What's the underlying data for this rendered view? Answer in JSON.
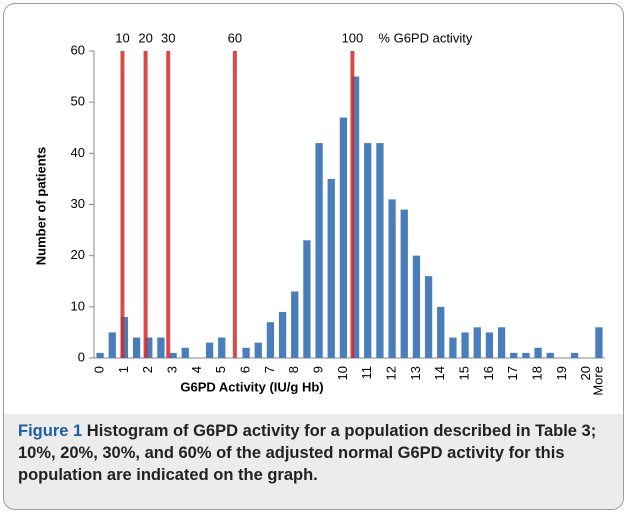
{
  "chart_data": {
    "type": "bar",
    "xlabel": "G6PD Activity (IU/g Hb)",
    "ylabel": "Number of patients",
    "categories": [
      "0",
      null,
      "1",
      null,
      "2",
      null,
      "3",
      null,
      "4",
      null,
      "5",
      null,
      "6",
      null,
      "7",
      null,
      "8",
      null,
      "9",
      null,
      "10",
      null,
      "11",
      null,
      "12",
      null,
      "13",
      null,
      "14",
      null,
      "15",
      null,
      "16",
      null,
      "17",
      null,
      "18",
      null,
      "19",
      null,
      "20",
      "More"
    ],
    "values": [
      1,
      5,
      8,
      4,
      4,
      4,
      1,
      2,
      0,
      3,
      4,
      0,
      2,
      3,
      7,
      9,
      13,
      23,
      42,
      35,
      47,
      55,
      42,
      42,
      31,
      29,
      20,
      16,
      10,
      4,
      5,
      6,
      5,
      6,
      1,
      1,
      2,
      1,
      0,
      1,
      0,
      6
    ],
    "color": "#4a7ebb",
    "ylim": [
      0,
      60
    ],
    "yticks": [
      0,
      10,
      20,
      30,
      40,
      50,
      60
    ],
    "grid": false,
    "reference_lines": [
      {
        "x": 0.92,
        "label": "10"
      },
      {
        "x": 1.87,
        "label": "20"
      },
      {
        "x": 2.8,
        "label": "30"
      },
      {
        "x": 5.54,
        "label": "60"
      },
      {
        "x": 10.37,
        "label": "100"
      }
    ],
    "reference_color": "#d42a2a",
    "reference_note": "% G6PD activity"
  },
  "caption": {
    "label": "Figure 1",
    "text": "Histogram of G6PD activity for a population described in Table 3; 10%, 20%, 30%, and 60% of the adjusted normal G6PD activity for this population are indicated on the graph."
  }
}
